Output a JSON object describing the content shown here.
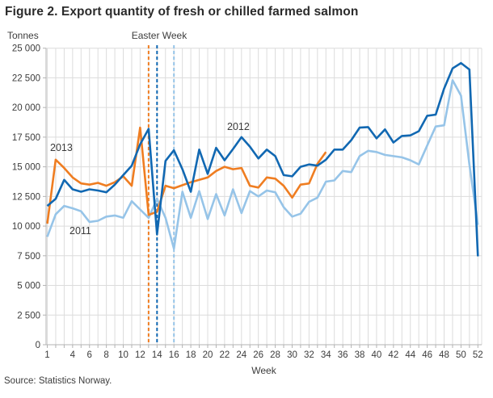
{
  "figure": {
    "title": "Figure 2. Export quantity of fresh or chilled farmed salmon",
    "y_axis_label": "Tonnes",
    "x_axis_label": "Week",
    "annotation": "Easter Week",
    "source": "Source: Statistics Norway."
  },
  "colors": {
    "series_2011": "#96C4E8",
    "series_2012": "#1168B2",
    "series_2013": "#EF7D21",
    "grid": "#DCDCDC",
    "axis": "#B3B3B3",
    "text": "#3c3c3c"
  },
  "chart_data": {
    "type": "line",
    "title": "Figure 2. Export quantity of fresh or chilled farmed salmon",
    "xlabel": "Week",
    "ylabel": "Tonnes",
    "x_range": [
      1,
      52
    ],
    "ylim": [
      0,
      25000
    ],
    "y_tick_step": 2500,
    "y_tick_labels": [
      "0",
      "2 500",
      "5 000",
      "7 500",
      "10 000",
      "12 500",
      "15 000",
      "17 500",
      "20 000",
      "22 500",
      "25 000"
    ],
    "x_tick_weeks": [
      1,
      4,
      6,
      8,
      10,
      12,
      14,
      16,
      18,
      20,
      22,
      24,
      26,
      28,
      30,
      32,
      34,
      36,
      38,
      40,
      42,
      44,
      46,
      48,
      50,
      52
    ],
    "grid": true,
    "legend": "inline-labels",
    "annotation": "Easter Week",
    "easter_week_lines": [
      {
        "year": "2013",
        "week": 13,
        "color": "#EF7D21"
      },
      {
        "year": "2012",
        "week": 14,
        "color": "#1168B2"
      },
      {
        "year": "2011",
        "week": 16,
        "color": "#96C4E8"
      }
    ],
    "series": [
      {
        "name": "2011",
        "color": "#96C4E8",
        "start_week": 1,
        "values": [
          9100,
          11000,
          11700,
          11500,
          11250,
          10350,
          10450,
          10800,
          10900,
          10700,
          12100,
          11400,
          10700,
          12300,
          10700,
          8100,
          12900,
          10700,
          12950,
          10600,
          12700,
          10900,
          13100,
          11100,
          12950,
          12500,
          13000,
          12850,
          11600,
          10800,
          11050,
          12050,
          12400,
          13750,
          13850,
          14650,
          14550,
          15900,
          16350,
          16250,
          16000,
          15900,
          15800,
          15550,
          15200,
          16800,
          18400,
          18500,
          22300,
          21000,
          15200,
          10100
        ]
      },
      {
        "name": "2012",
        "color": "#1168B2",
        "start_week": 1,
        "values": [
          11700,
          12300,
          13900,
          13100,
          12900,
          13100,
          13000,
          12850,
          13500,
          14300,
          15100,
          16900,
          18200,
          9300,
          15500,
          16400,
          14800,
          12900,
          16450,
          14400,
          16600,
          15550,
          16500,
          17500,
          16700,
          15700,
          16450,
          15900,
          14300,
          14200,
          15000,
          15200,
          15100,
          15600,
          16450,
          16450,
          17250,
          18300,
          18350,
          17400,
          18150,
          17050,
          17600,
          17650,
          18000,
          19300,
          19400,
          21600,
          23300,
          23750,
          23200,
          7450
        ]
      },
      {
        "name": "2013",
        "color": "#EF7D21",
        "start_week": 1,
        "values": [
          10200,
          15600,
          14900,
          14100,
          13600,
          13500,
          13650,
          13400,
          13700,
          14200,
          13400,
          18300,
          10950,
          11200,
          13400,
          13200,
          13450,
          13700,
          13900,
          14100,
          14650,
          15000,
          14800,
          14900,
          13400,
          13250,
          14100,
          14000,
          13400,
          12400,
          13500,
          13600,
          15250,
          16250
        ]
      }
    ]
  }
}
